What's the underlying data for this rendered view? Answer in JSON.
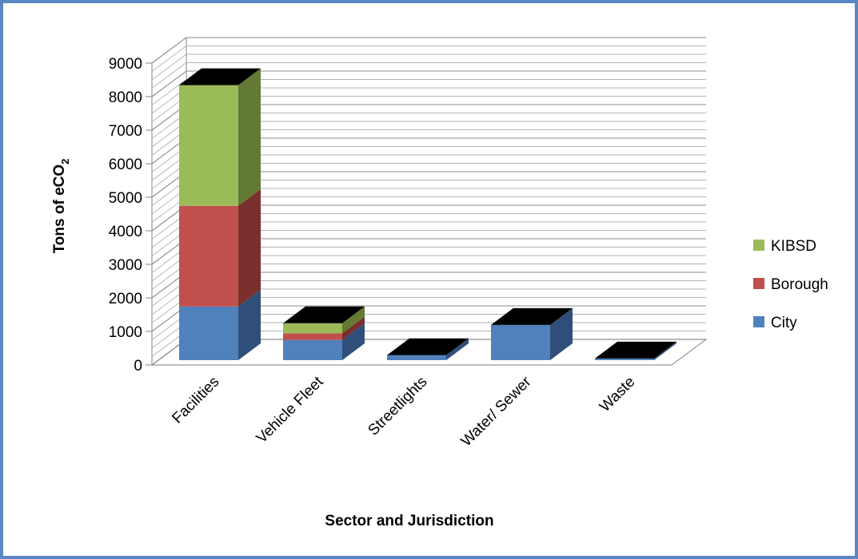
{
  "chart_data": {
    "type": "bar",
    "stacked": true,
    "three_d": true,
    "categories": [
      "Facilities",
      "Vehicle Fleet",
      "Streetlights",
      "Water/ Sewer",
      "Waste"
    ],
    "series": [
      {
        "name": "City",
        "values": [
          1600,
          600,
          150,
          1050,
          50
        ],
        "color": "#4f81bd",
        "side_color": "#2f4f7a",
        "top_color": "#6b91c8"
      },
      {
        "name": "Borough",
        "values": [
          3000,
          200,
          0,
          0,
          0
        ],
        "color": "#c0504d",
        "side_color": "#7a2f2d",
        "top_color": "#c96a67"
      },
      {
        "name": "KIBSD",
        "values": [
          3600,
          300,
          0,
          0,
          0
        ],
        "color": "#9bbb59",
        "side_color": "#627a34",
        "top_color": "#708a3c"
      }
    ],
    "ylim": [
      0,
      9000
    ],
    "yticks": [
      "0",
      "1000",
      "2000",
      "3000",
      "4000",
      "5000",
      "6000",
      "7000",
      "8000",
      "9000"
    ],
    "ylabel_main": "Tons of eCO",
    "ylabel_sub": "2",
    "xlabel": "Sector and Jurisdiction",
    "legend_position": "right",
    "legend_order": [
      "KIBSD",
      "Borough",
      "City"
    ],
    "grid": true,
    "top_cap_color": "#76923c"
  }
}
